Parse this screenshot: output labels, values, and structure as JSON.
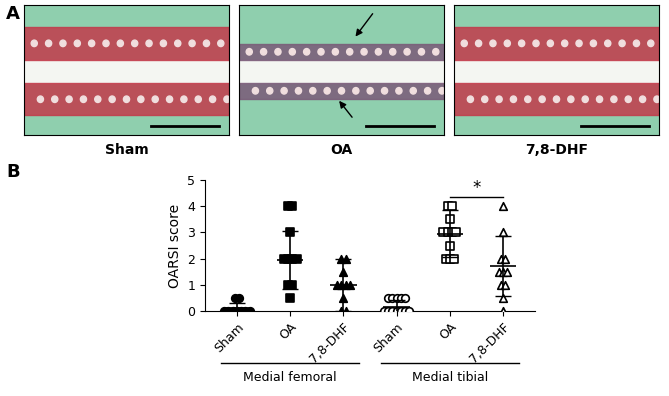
{
  "panel_labels": [
    "A",
    "B"
  ],
  "images": [
    "Sham",
    "OA",
    "7,8-DHF"
  ],
  "chart_data": {
    "type": "scatter",
    "y_label": "OARSI score",
    "categories": [
      "Sham",
      "OA",
      "7,8-DHF",
      "Sham",
      "OA",
      "7,8-DHF"
    ],
    "groups": [
      {
        "label": "Medial femoral",
        "span": [
          0,
          2
        ]
      },
      {
        "label": "Medial tibial",
        "span": [
          3,
          5
        ]
      }
    ],
    "values": [
      [
        0,
        0,
        0,
        0,
        0,
        0,
        0,
        0.5,
        0.5
      ],
      [
        4,
        4,
        3,
        2,
        2,
        2,
        2,
        1,
        1,
        0.5
      ],
      [
        2,
        1.5,
        1,
        1,
        1,
        1,
        0.5,
        0,
        0,
        2
      ],
      [
        0.5,
        0.5,
        0.5,
        0.5,
        0.5,
        0,
        0,
        0,
        0,
        0,
        0,
        0
      ],
      [
        4,
        4,
        3.5,
        3,
        3,
        3,
        3,
        2,
        2,
        2,
        2.5
      ],
      [
        4,
        3,
        2,
        2,
        1.5,
        1.5,
        1.5,
        1,
        1,
        0.5,
        0
      ]
    ],
    "mean": [
      0.1,
      1.95,
      1.0,
      0.15,
      2.95,
      1.7
    ],
    "sd": [
      0.2,
      1.1,
      1.0,
      0.25,
      0.9,
      1.15
    ],
    "marker": [
      "circle",
      "square",
      "triangle",
      "open-circle",
      "open-square",
      "open-triangle"
    ],
    "color": "#000000",
    "annotations": [
      {
        "text": "*",
        "between": [
          4,
          5
        ]
      }
    ],
    "ylim": [
      0,
      5
    ],
    "yticks": [
      0,
      1,
      2,
      3,
      4,
      5
    ]
  }
}
